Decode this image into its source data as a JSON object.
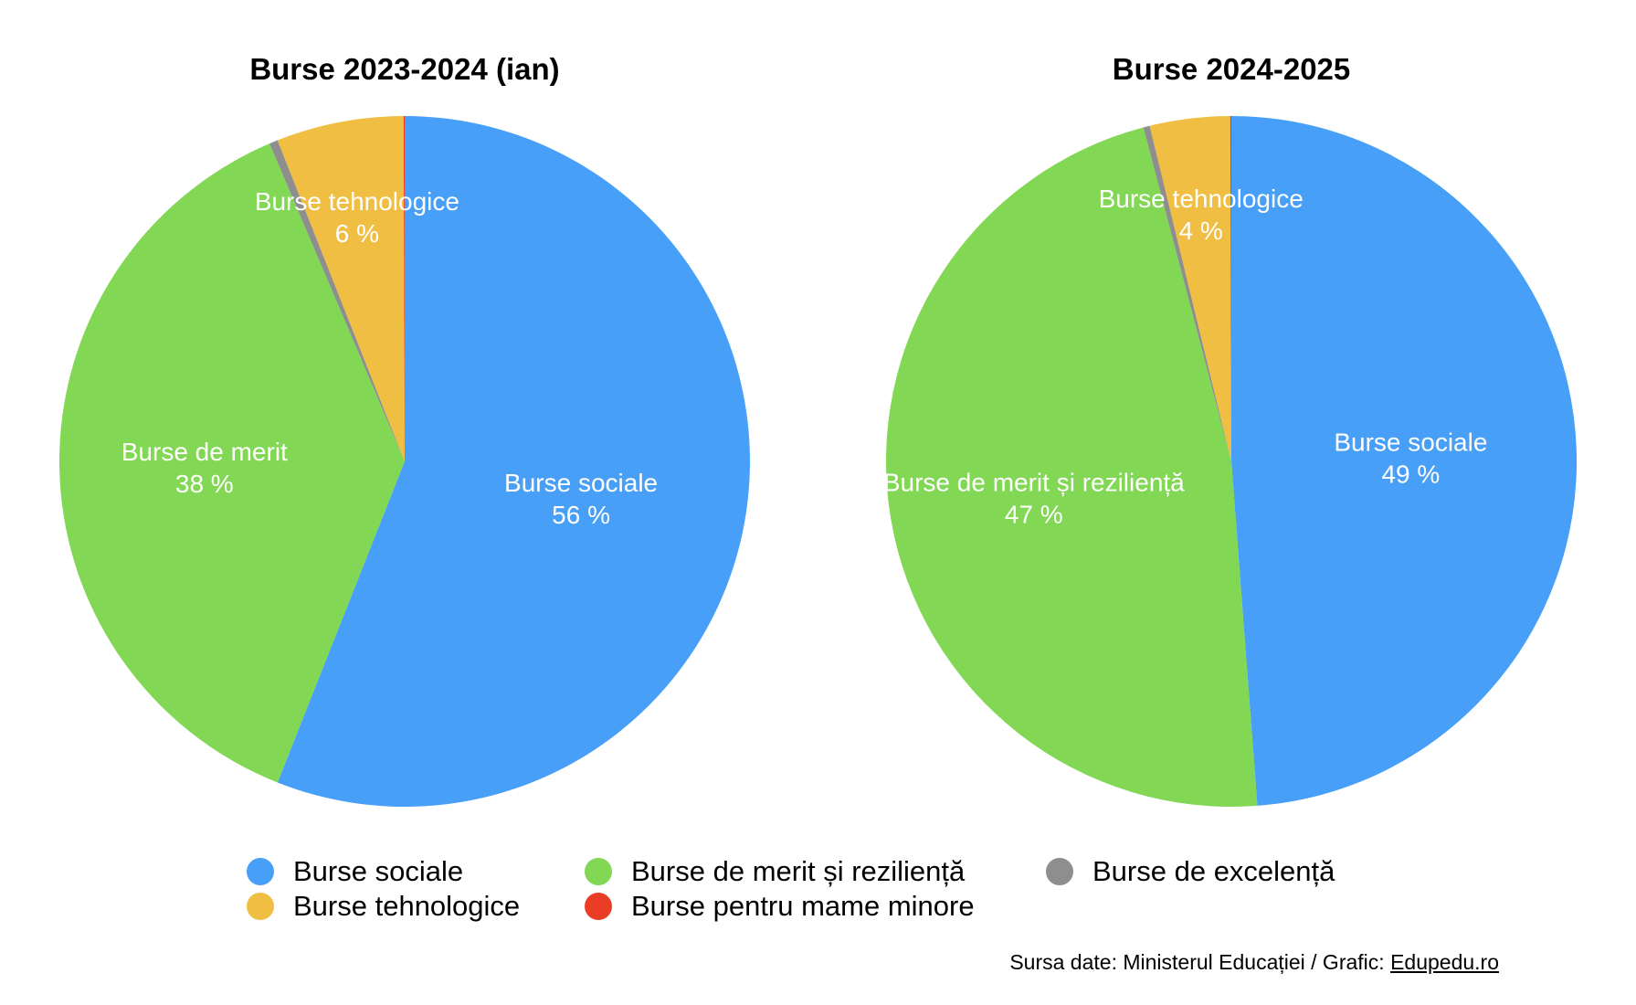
{
  "chart_data": [
    {
      "type": "pie",
      "title": "Burse 2023-2024 (ian)",
      "slices": [
        {
          "name": "Burse sociale",
          "label": "Burse sociale",
          "value": 56.0,
          "pct_label": "56 %",
          "color": "#489ff8",
          "show_label": true
        },
        {
          "name": "Burse de merit și reziliență",
          "label": "Burse de merit",
          "value": 37.6,
          "pct_label": "38 %",
          "color": "#82d755",
          "show_label": true
        },
        {
          "name": "Burse de excelență",
          "label": "",
          "value": 0.4,
          "pct_label": "",
          "color": "#8e8e8e",
          "show_label": false
        },
        {
          "name": "Burse tehnologice",
          "label": "Burse tehnologice",
          "value": 5.95,
          "pct_label": "6 %",
          "color": "#f0be42",
          "show_label": true
        },
        {
          "name": "Burse pentru mame minore",
          "label": "",
          "value": 0.05,
          "pct_label": "",
          "color": "#ea3d25",
          "show_label": false
        }
      ]
    },
    {
      "type": "pie",
      "title": "Burse 2024-2025",
      "slices": [
        {
          "name": "Burse sociale",
          "label": "Burse sociale",
          "value": 48.8,
          "pct_label": "49 %",
          "color": "#489ff8",
          "show_label": true
        },
        {
          "name": "Burse de merit și reziliență",
          "label": "Burse de merit și reziliență",
          "value": 47.1,
          "pct_label": "47 %",
          "color": "#82d755",
          "show_label": true
        },
        {
          "name": "Burse de excelență",
          "label": "",
          "value": 0.3,
          "pct_label": "",
          "color": "#8e8e8e",
          "show_label": false
        },
        {
          "name": "Burse tehnologice",
          "label": "Burse tehnologice",
          "value": 3.75,
          "pct_label": "4 %",
          "color": "#f0be42",
          "show_label": true
        },
        {
          "name": "Burse pentru mame minore",
          "label": "",
          "value": 0.05,
          "pct_label": "",
          "color": "#ea3d25",
          "show_label": false
        }
      ]
    }
  ],
  "legend": [
    {
      "label": "Burse sociale",
      "color": "#489ff8"
    },
    {
      "label": "Burse de merit și reziliență",
      "color": "#82d755"
    },
    {
      "label": "Burse de excelență",
      "color": "#8e8e8e"
    },
    {
      "label": "Burse tehnologice",
      "color": "#f0be42"
    },
    {
      "label": "Burse pentru mame minore",
      "color": "#ea3d25"
    }
  ],
  "source": {
    "prefix": "Sursa date: Ministerul Educației / Grafic: ",
    "link_text": "Edupedu.ro"
  }
}
